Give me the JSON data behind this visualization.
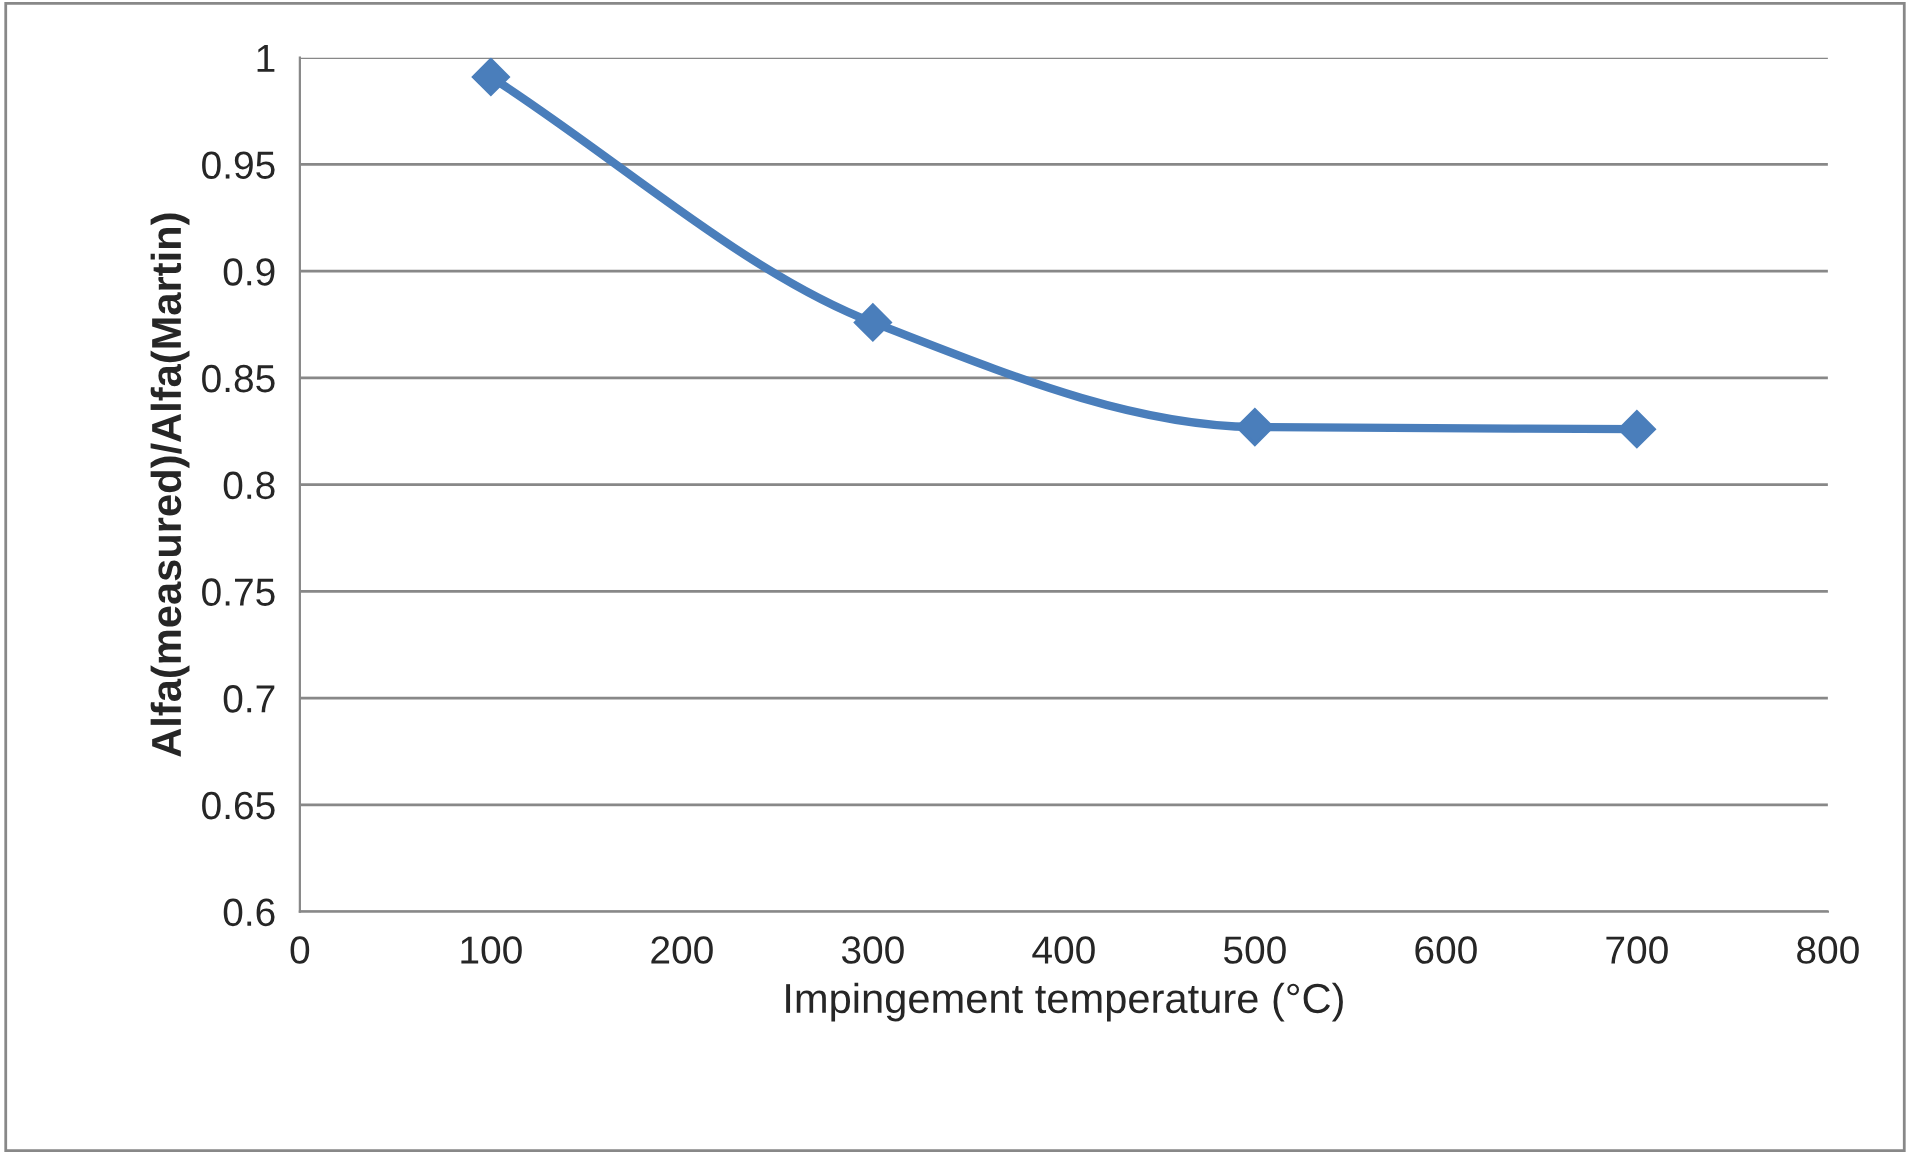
{
  "chart_data": {
    "type": "line",
    "xlabel": "Impingement temperature (°C)",
    "ylabel": "Alfa(measured)/Alfa(Martin)",
    "x": [
      100,
      300,
      500,
      700
    ],
    "series": [
      {
        "color": "#4a7ebb",
        "values": [
          0.991,
          0.876,
          0.827,
          0.826
        ]
      }
    ],
    "xlim": [
      0,
      800
    ],
    "xticks": [
      0,
      100,
      200,
      300,
      400,
      500,
      600,
      700,
      800
    ],
    "ylim": [
      0.6,
      1
    ],
    "yticks": [
      0.6,
      0.65,
      0.7,
      0.75,
      0.8,
      0.85,
      0.9,
      0.95,
      1
    ],
    "grid": "y",
    "marker": "diamond",
    "line_style": "solid"
  }
}
